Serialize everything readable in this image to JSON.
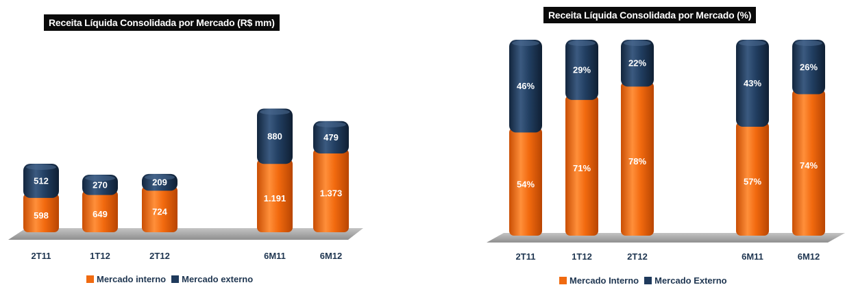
{
  "colors": {
    "mercado_interno": "#f06a10",
    "mercado_externo": "#1f3a5c",
    "label_text": "#1e3550",
    "floor": "#a8a8a8"
  },
  "chart_data": [
    {
      "type": "bar",
      "stacked": true,
      "title": "Receita Líquida Consolidada por Mercado (R$ mm)",
      "categories": [
        "2T11",
        "1T12",
        "2T12",
        "6M11",
        "6M12"
      ],
      "series": [
        {
          "name": "Mercado interno",
          "values": [
            598,
            649,
            724,
            1191,
            1373
          ],
          "labels": [
            "598",
            "649",
            "724",
            "1.191",
            "1.373"
          ]
        },
        {
          "name": "Mercado externo",
          "values": [
            512,
            270,
            209,
            880,
            479
          ],
          "labels": [
            "512",
            "270",
            "209",
            "880",
            "479"
          ]
        }
      ],
      "legend": [
        "Mercado interno",
        "Mercado externo"
      ],
      "legend_position": "bottom"
    },
    {
      "type": "bar",
      "stacked": true,
      "title": "Receita Líquida Consolidada por Mercado (%)",
      "categories": [
        "2T11",
        "1T12",
        "2T12",
        "6M11",
        "6M12"
      ],
      "series": [
        {
          "name": "Mercado Interno",
          "values": [
            54,
            71,
            78,
            57,
            74
          ],
          "labels": [
            "54%",
            "71%",
            "78%",
            "57%",
            "74%"
          ]
        },
        {
          "name": "Mercado Externo",
          "values": [
            46,
            29,
            22,
            43,
            26
          ],
          "labels": [
            "46%",
            "29%",
            "22%",
            "43%",
            "26%"
          ]
        }
      ],
      "legend": [
        "Mercado Interno",
        "Mercado Externo"
      ],
      "legend_position": "bottom"
    }
  ]
}
